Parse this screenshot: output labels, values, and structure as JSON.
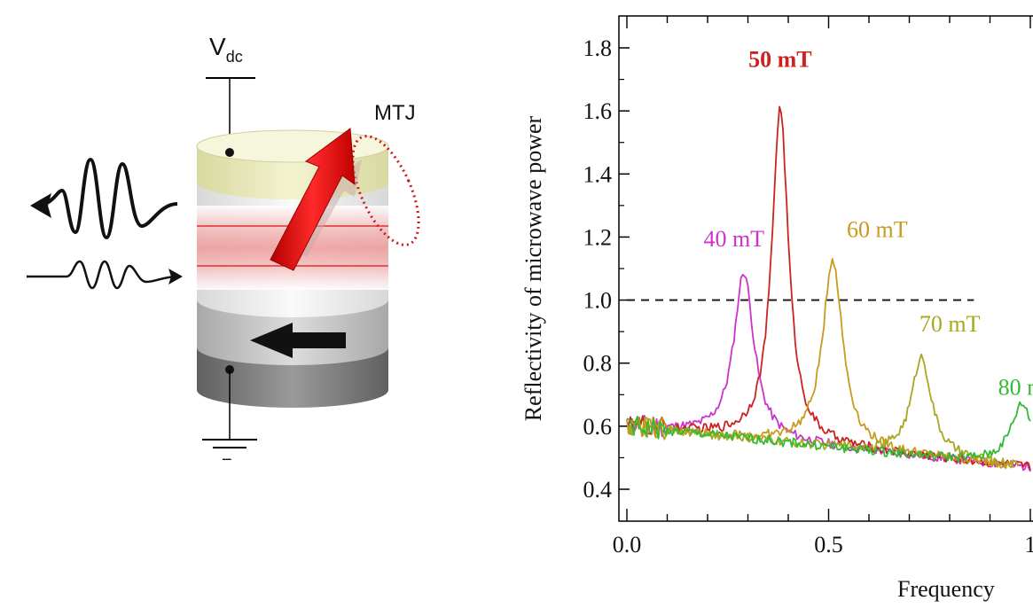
{
  "diagram": {
    "vdc_main": "V",
    "vdc_sub": "dc",
    "mtj_label": "MTJ",
    "ground_sign": "−"
  },
  "chart_data": {
    "type": "line",
    "xlabel": "Frequency",
    "ylabel": "Reflectivity of microwave power",
    "xlim": [
      0.0,
      1.0
    ],
    "ylim": [
      0.35,
      1.9
    ],
    "x_ticks": [
      0.0,
      0.5,
      1.0
    ],
    "x_tick_labels": [
      "0.0",
      "0.5",
      "1"
    ],
    "y_ticks": [
      0.4,
      0.6,
      0.8,
      1.0,
      1.2,
      1.4,
      1.6,
      1.8
    ],
    "y_tick_labels": [
      "0.4",
      "0.6",
      "0.8",
      "1.0",
      "1.2",
      "1.4",
      "1.6",
      "1.8"
    ],
    "reference_line": {
      "y": 1.0,
      "x_end": 0.86,
      "style": "dashed"
    },
    "grid": false,
    "series": [
      {
        "name": "40 mT",
        "color": "#cc33cc",
        "peak_x": 0.29,
        "peak_y": 1.09,
        "width": 0.03,
        "end_x": 1.0,
        "label_x": 0.19,
        "label_y": 1.17,
        "label_weight": "normal"
      },
      {
        "name": "50 mT",
        "color": "#cc2222",
        "peak_x": 0.38,
        "peak_y": 1.61,
        "width": 0.025,
        "end_x": 1.0,
        "label_x": 0.38,
        "label_y": 1.74,
        "label_weight": "bold"
      },
      {
        "name": "60 mT",
        "color": "#c89a1e",
        "peak_x": 0.51,
        "peak_y": 1.13,
        "width": 0.03,
        "end_x": 0.96,
        "label_x": 0.545,
        "label_y": 1.2,
        "label_weight": "normal"
      },
      {
        "name": "70 mT",
        "color": "#a8a81e",
        "peak_x": 0.73,
        "peak_y": 0.82,
        "width": 0.03,
        "end_x": 0.97,
        "label_x": 0.725,
        "label_y": 0.9,
        "label_weight": "normal"
      },
      {
        "name": "80 m",
        "color": "#33bb33",
        "peak_x": 0.98,
        "peak_y": 0.67,
        "width": 0.035,
        "end_x": 1.0,
        "label_x": 0.92,
        "label_y": 0.7,
        "label_weight": "normal"
      }
    ]
  }
}
